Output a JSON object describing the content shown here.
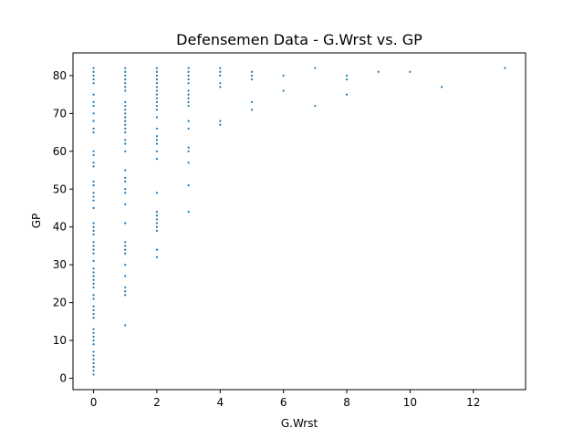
{
  "chart_data": {
    "type": "scatter",
    "title": "Defensemen Data - G.Wrst vs. GP",
    "xlabel": "G.Wrst",
    "ylabel": "GP",
    "xlim": [
      -0.65,
      13.65
    ],
    "ylim": [
      -3,
      86
    ],
    "xticks": [
      0,
      2,
      4,
      6,
      8,
      10,
      12
    ],
    "yticks": [
      0,
      10,
      20,
      30,
      40,
      50,
      60,
      70,
      80
    ],
    "grid": false,
    "legend": "none",
    "marker_color": "#1f77b4",
    "series": [
      {
        "points": [
          [
            0,
            1
          ],
          [
            0,
            2
          ],
          [
            0,
            3
          ],
          [
            0,
            4
          ],
          [
            0,
            5
          ],
          [
            0,
            6
          ],
          [
            0,
            7
          ],
          [
            0,
            9
          ],
          [
            0,
            10
          ],
          [
            0,
            11
          ],
          [
            0,
            12
          ],
          [
            0,
            13
          ],
          [
            0,
            16
          ],
          [
            0,
            17
          ],
          [
            0,
            18
          ],
          [
            0,
            19
          ],
          [
            0,
            21
          ],
          [
            0,
            22
          ],
          [
            0,
            24
          ],
          [
            0,
            25
          ],
          [
            0,
            26
          ],
          [
            0,
            27
          ],
          [
            0,
            28
          ],
          [
            0,
            29
          ],
          [
            0,
            31
          ],
          [
            0,
            33
          ],
          [
            0,
            34
          ],
          [
            0,
            35
          ],
          [
            0,
            36
          ],
          [
            0,
            38
          ],
          [
            0,
            39
          ],
          [
            0,
            40
          ],
          [
            0,
            41
          ],
          [
            0,
            45
          ],
          [
            0,
            47
          ],
          [
            0,
            48
          ],
          [
            0,
            49
          ],
          [
            0,
            51
          ],
          [
            0,
            52
          ],
          [
            0,
            56
          ],
          [
            0,
            57
          ],
          [
            0,
            59
          ],
          [
            0,
            60
          ],
          [
            0,
            65
          ],
          [
            0,
            66
          ],
          [
            0,
            68
          ],
          [
            0,
            70
          ],
          [
            0,
            72
          ],
          [
            0,
            73
          ],
          [
            0,
            75
          ],
          [
            0,
            78
          ],
          [
            0,
            79
          ],
          [
            0,
            80
          ],
          [
            0,
            81
          ],
          [
            0,
            82
          ],
          [
            1,
            14
          ],
          [
            1,
            22
          ],
          [
            1,
            23
          ],
          [
            1,
            24
          ],
          [
            1,
            27
          ],
          [
            1,
            30
          ],
          [
            1,
            33
          ],
          [
            1,
            34
          ],
          [
            1,
            35
          ],
          [
            1,
            36
          ],
          [
            1,
            41
          ],
          [
            1,
            46
          ],
          [
            1,
            49
          ],
          [
            1,
            50
          ],
          [
            1,
            52
          ],
          [
            1,
            53
          ],
          [
            1,
            55
          ],
          [
            1,
            60
          ],
          [
            1,
            62
          ],
          [
            1,
            63
          ],
          [
            1,
            65
          ],
          [
            1,
            66
          ],
          [
            1,
            67
          ],
          [
            1,
            68
          ],
          [
            1,
            69
          ],
          [
            1,
            70
          ],
          [
            1,
            71
          ],
          [
            1,
            72
          ],
          [
            1,
            73
          ],
          [
            1,
            76
          ],
          [
            1,
            77
          ],
          [
            1,
            78
          ],
          [
            1,
            79
          ],
          [
            1,
            80
          ],
          [
            1,
            81
          ],
          [
            1,
            82
          ],
          [
            2,
            32
          ],
          [
            2,
            34
          ],
          [
            2,
            39
          ],
          [
            2,
            40
          ],
          [
            2,
            41
          ],
          [
            2,
            42
          ],
          [
            2,
            43
          ],
          [
            2,
            44
          ],
          [
            2,
            49
          ],
          [
            2,
            58
          ],
          [
            2,
            60
          ],
          [
            2,
            62
          ],
          [
            2,
            63
          ],
          [
            2,
            64
          ],
          [
            2,
            66
          ],
          [
            2,
            69
          ],
          [
            2,
            71
          ],
          [
            2,
            72
          ],
          [
            2,
            73
          ],
          [
            2,
            74
          ],
          [
            2,
            75
          ],
          [
            2,
            76
          ],
          [
            2,
            77
          ],
          [
            2,
            78
          ],
          [
            2,
            79
          ],
          [
            2,
            80
          ],
          [
            2,
            81
          ],
          [
            2,
            82
          ],
          [
            3,
            44
          ],
          [
            3,
            51
          ],
          [
            3,
            57
          ],
          [
            3,
            60
          ],
          [
            3,
            61
          ],
          [
            3,
            66
          ],
          [
            3,
            68
          ],
          [
            3,
            72
          ],
          [
            3,
            73
          ],
          [
            3,
            74
          ],
          [
            3,
            75
          ],
          [
            3,
            76
          ],
          [
            3,
            78
          ],
          [
            3,
            79
          ],
          [
            3,
            80
          ],
          [
            3,
            81
          ],
          [
            3,
            82
          ],
          [
            4,
            67
          ],
          [
            4,
            68
          ],
          [
            4,
            77
          ],
          [
            4,
            78
          ],
          [
            4,
            80
          ],
          [
            4,
            81
          ],
          [
            4,
            82
          ],
          [
            5,
            71
          ],
          [
            5,
            73
          ],
          [
            5,
            79
          ],
          [
            5,
            80
          ],
          [
            5,
            81
          ],
          [
            6,
            76
          ],
          [
            6,
            80
          ],
          [
            7,
            72
          ],
          [
            7,
            82
          ],
          [
            8,
            75
          ],
          [
            8,
            79
          ],
          [
            8,
            80
          ],
          [
            9,
            81
          ],
          [
            10,
            81
          ],
          [
            11,
            77
          ],
          [
            13,
            82
          ]
        ]
      }
    ]
  }
}
